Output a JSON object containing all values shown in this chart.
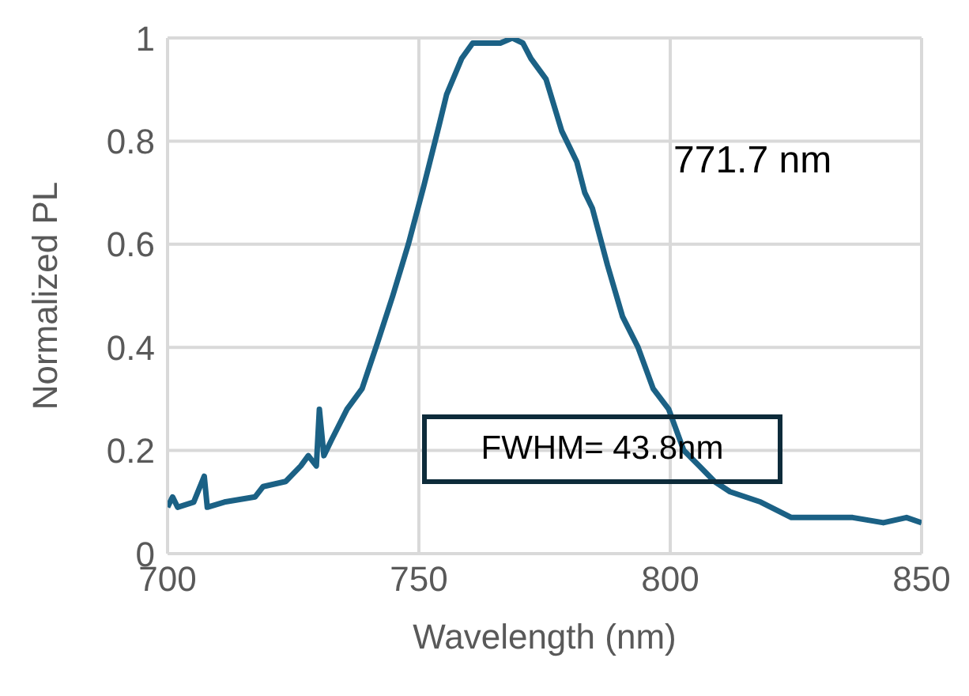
{
  "chart_data": {
    "type": "line",
    "xlabel": "Wavelength (nm)",
    "ylabel": "Normalized PL",
    "xlim": [
      700,
      850
    ],
    "xticks": [
      700,
      750,
      800,
      850
    ],
    "ylim": [
      0,
      1
    ],
    "yticks": [
      0,
      {
        "value": 0.2,
        "label": "0.2"
      },
      {
        "value": 0.4,
        "label": "0.4"
      },
      {
        "value": 0.6,
        "label": "0.6"
      },
      {
        "value": 0.8,
        "label": "0.8"
      },
      1
    ],
    "grid": true,
    "legend": false,
    "marker": "none",
    "line_style": "solid",
    "annotations": [
      "771.7 nm",
      "FWHM= 43.8nm"
    ],
    "series": [
      {
        "color": "#1b6185",
        "x": [
          700,
          701,
          702,
          705.2,
          707.3,
          707.9,
          711.3,
          717.4,
          719,
          723.5,
          726.5,
          728,
          729.6,
          730.2,
          731.1,
          732.6,
          735.7,
          738.7,
          741.8,
          744.8,
          747.9,
          750.9,
          754,
          755.5,
          758.5,
          760.7,
          763.1,
          766.2,
          768.6,
          770.7,
          772.3,
          775.3,
          778.4,
          781.4,
          783,
          784.5,
          787.5,
          790.5,
          793.6,
          796.6,
          799.7,
          802.7,
          805.8,
          808.8,
          811.9,
          818,
          824.1,
          830.2,
          836.3,
          842.4,
          847,
          850
        ],
        "values": [
          0.09,
          0.11,
          0.09,
          0.1,
          0.15,
          0.09,
          0.1,
          0.11,
          0.13,
          0.14,
          0.17,
          0.19,
          0.17,
          0.28,
          0.19,
          0.22,
          0.28,
          0.32,
          0.41,
          0.5,
          0.6,
          0.71,
          0.83,
          0.89,
          0.96,
          0.99,
          0.99,
          0.99,
          1.0,
          0.99,
          0.96,
          0.92,
          0.82,
          0.76,
          0.7,
          0.67,
          0.56,
          0.46,
          0.4,
          0.32,
          0.28,
          0.2,
          0.17,
          0.14,
          0.12,
          0.1,
          0.07,
          0.07,
          0.07,
          0.06,
          0.07,
          0.06
        ]
      }
    ]
  }
}
